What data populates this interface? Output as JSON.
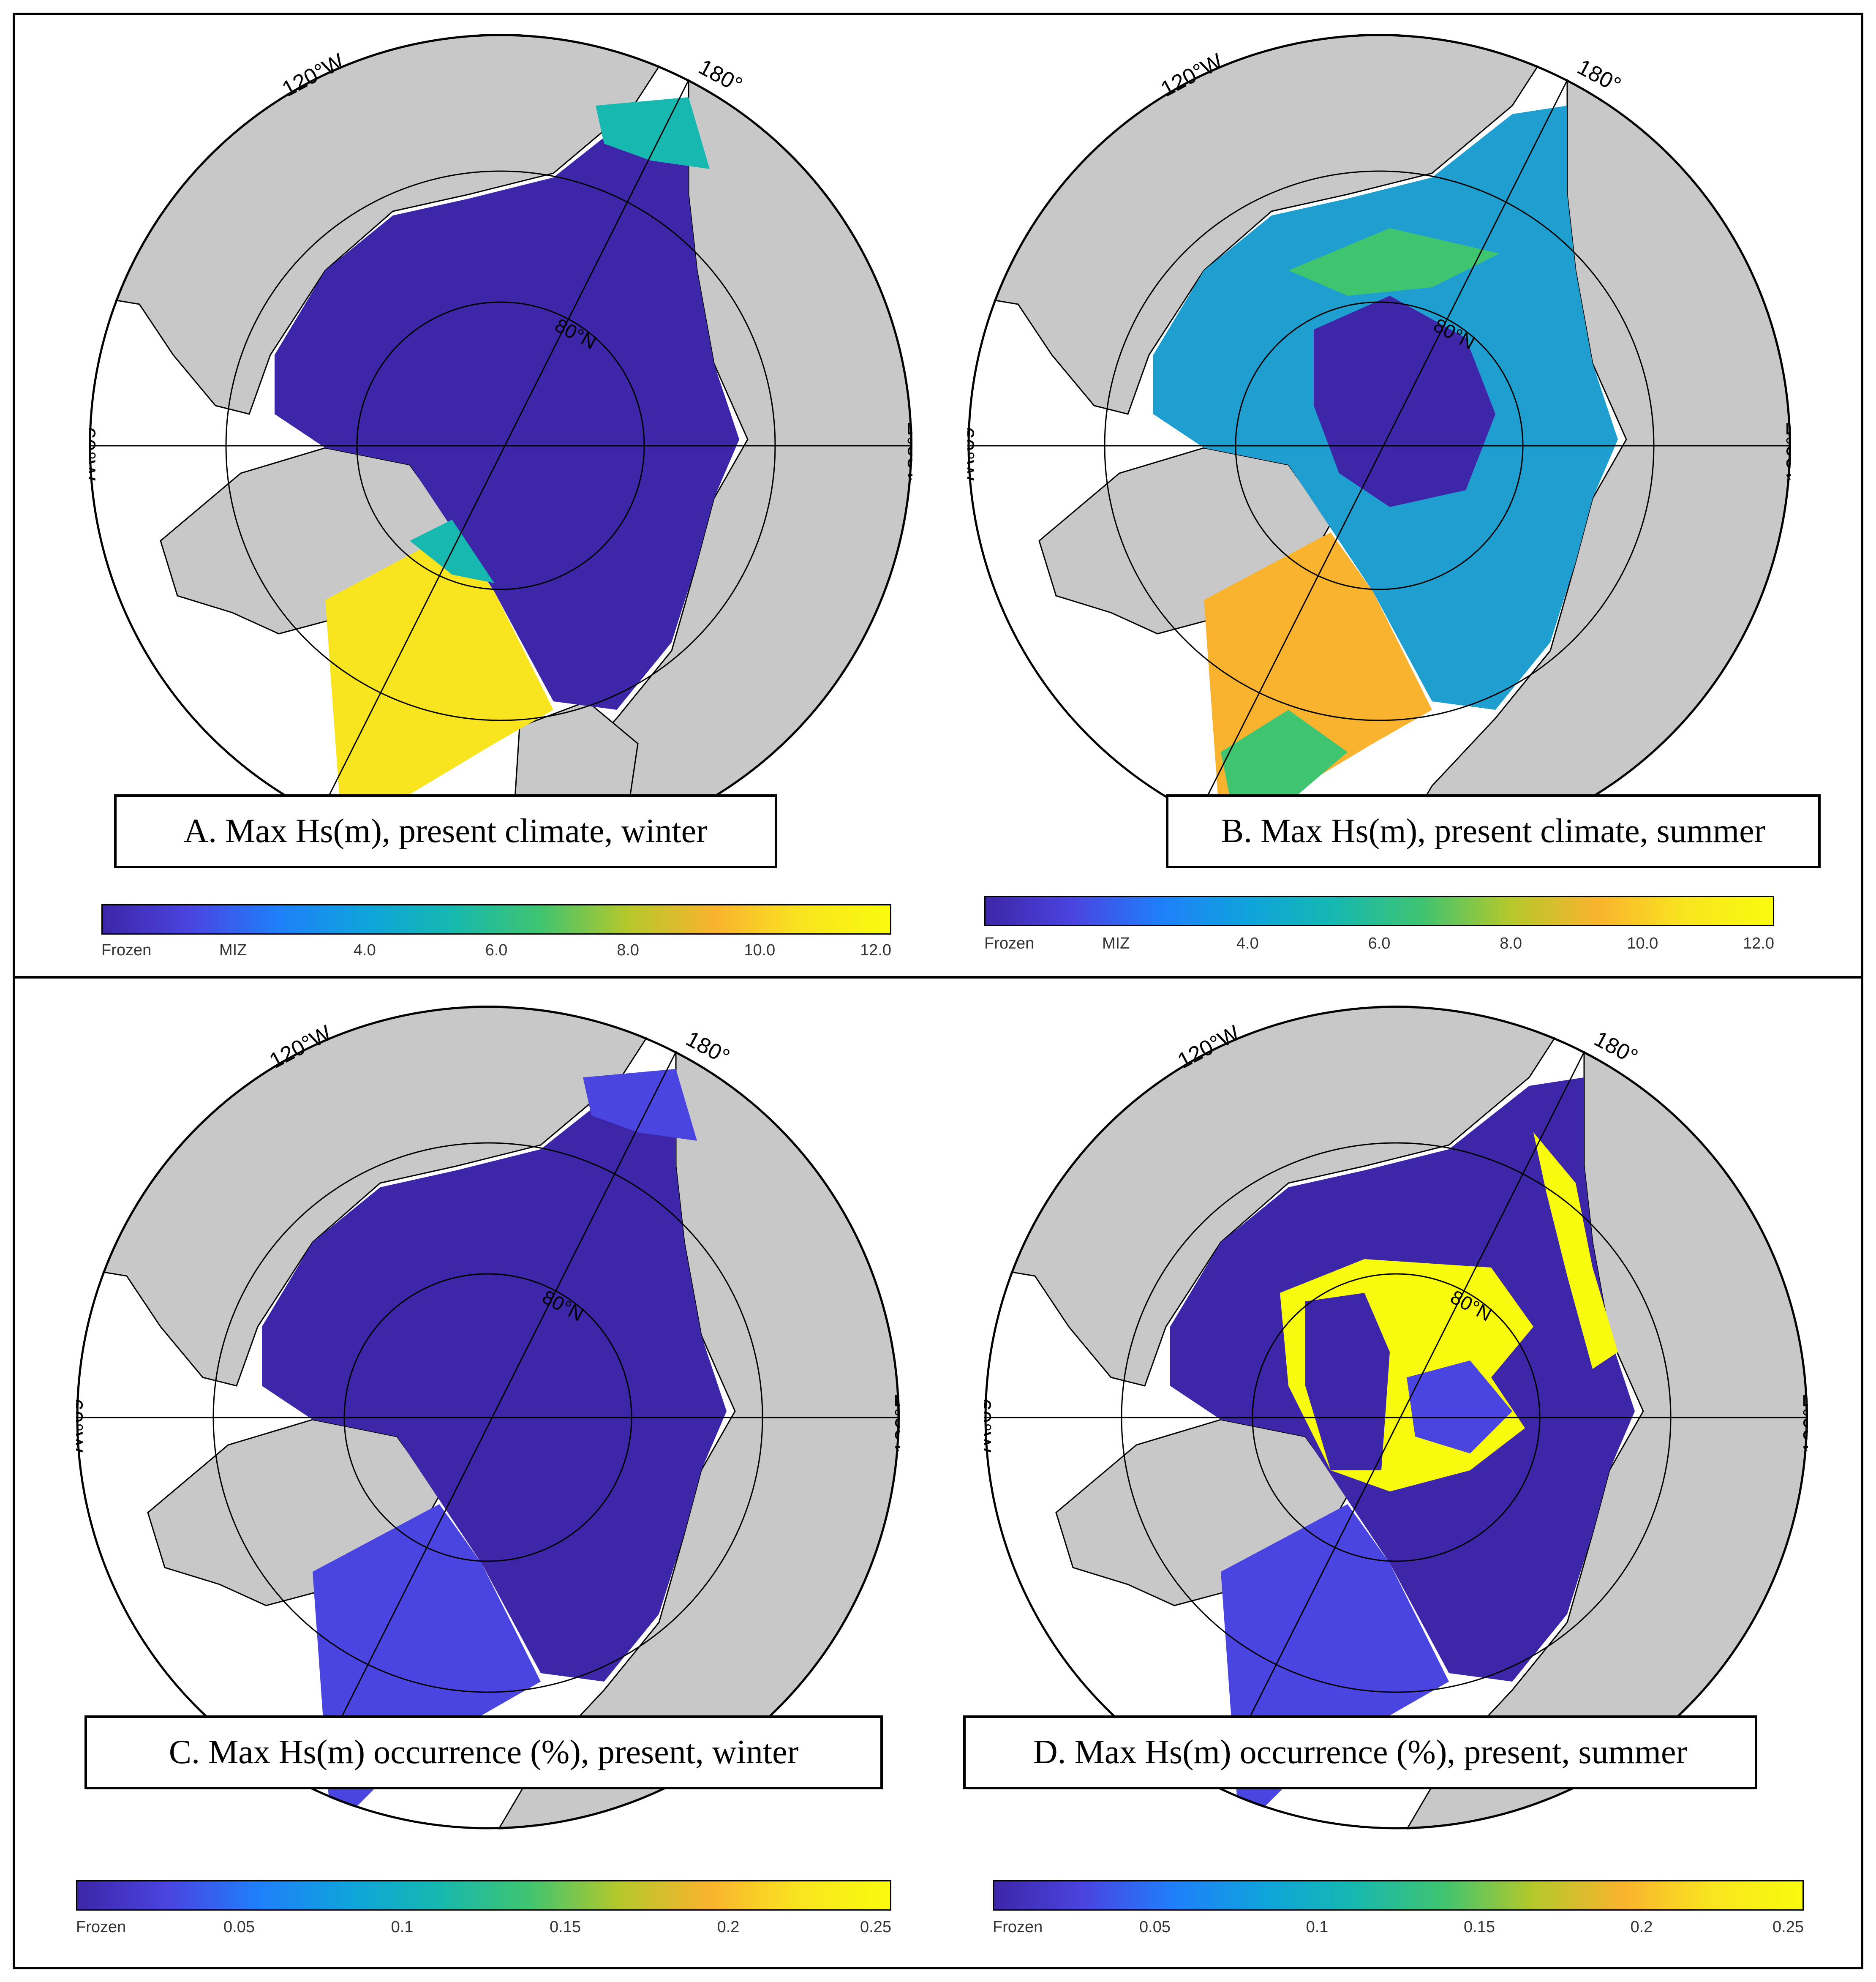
{
  "panels": [
    {
      "id": "A",
      "caption": "A. Max Hs(m), present climate, winter",
      "lon_labels": {
        "w120": "120°W",
        "e180": "180°",
        "w60": "60°W",
        "e120": "120°E",
        "lat80": "80°N"
      },
      "colorbar": {
        "ticks": [
          "Frozen",
          "MIZ",
          "4.0",
          "6.0",
          "8.0",
          "10.0",
          "12.0"
        ]
      }
    },
    {
      "id": "B",
      "caption": "B. Max Hs(m), present climate, summer",
      "lon_labels": {
        "w120": "120°W",
        "e180": "180°",
        "w60": "60°W",
        "e120": "120°E",
        "lat80": "80°N"
      },
      "colorbar": {
        "ticks": [
          "Frozen",
          "MIZ",
          "4.0",
          "6.0",
          "8.0",
          "10.0",
          "12.0"
        ]
      }
    },
    {
      "id": "C",
      "caption": "C. Max Hs(m) occurrence (%), present, winter",
      "lon_labels": {
        "w120": "120°W",
        "e180": "180°",
        "w60": "60°W",
        "e120": "120°E",
        "lat80": "80°N"
      },
      "colorbar": {
        "ticks": [
          "Frozen",
          "0.05",
          "0.1",
          "0.15",
          "0.2",
          "0.25"
        ]
      }
    },
    {
      "id": "D",
      "caption": "D. Max Hs(m) occurrence (%), present, summer",
      "lon_labels": {
        "w120": "120°W",
        "e180": "180°",
        "w60": "60°W",
        "e120": "120°E",
        "lat80": "80°N"
      },
      "colorbar": {
        "ticks": [
          "Frozen",
          "0.05",
          "0.1",
          "0.15",
          "0.2",
          "0.25"
        ]
      }
    }
  ],
  "colors": {
    "land": "#c8c8c8",
    "frozen": "#3d26a8",
    "cbar_stops": [
      "#3d26a8",
      "#4a44e0",
      "#1f7ffb",
      "#0fa3dc",
      "#16b8b0",
      "#3fc470",
      "#b5c82b",
      "#f9b32e",
      "#f9e51f",
      "#f9fb0e"
    ]
  }
}
